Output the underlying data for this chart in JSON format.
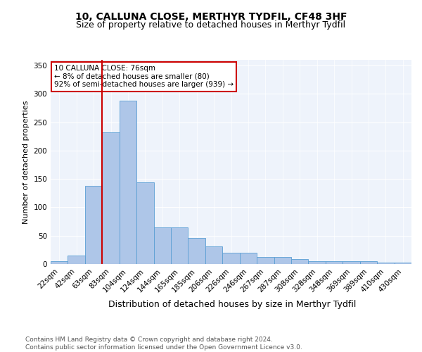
{
  "title": "10, CALLUNA CLOSE, MERTHYR TYDFIL, CF48 3HF",
  "subtitle": "Size of property relative to detached houses in Merthyr Tydfil",
  "xlabel": "Distribution of detached houses by size in Merthyr Tydfil",
  "ylabel": "Number of detached properties",
  "categories": [
    "22sqm",
    "42sqm",
    "63sqm",
    "83sqm",
    "104sqm",
    "124sqm",
    "144sqm",
    "165sqm",
    "185sqm",
    "206sqm",
    "226sqm",
    "246sqm",
    "267sqm",
    "287sqm",
    "308sqm",
    "328sqm",
    "348sqm",
    "369sqm",
    "389sqm",
    "410sqm",
    "430sqm"
  ],
  "values": [
    5,
    15,
    138,
    232,
    288,
    144,
    65,
    65,
    46,
    31,
    20,
    20,
    12,
    12,
    9,
    5,
    5,
    5,
    5,
    3,
    2
  ],
  "bar_color": "#aec6e8",
  "bar_edge_color": "#5a9fd4",
  "bg_color": "#eef3fb",
  "grid_color": "#ffffff",
  "vline_color": "#cc0000",
  "annotation_text": "10 CALLUNA CLOSE: 76sqm\n← 8% of detached houses are smaller (80)\n92% of semi-detached houses are larger (939) →",
  "annotation_box_color": "#ffffff",
  "annotation_box_edge": "#cc0000",
  "footnote": "Contains HM Land Registry data © Crown copyright and database right 2024.\nContains public sector information licensed under the Open Government Licence v3.0.",
  "ylim": [
    0,
    360
  ],
  "title_fontsize": 10,
  "subtitle_fontsize": 9,
  "xlabel_fontsize": 9,
  "ylabel_fontsize": 8,
  "tick_fontsize": 7.5,
  "footnote_fontsize": 6.5
}
